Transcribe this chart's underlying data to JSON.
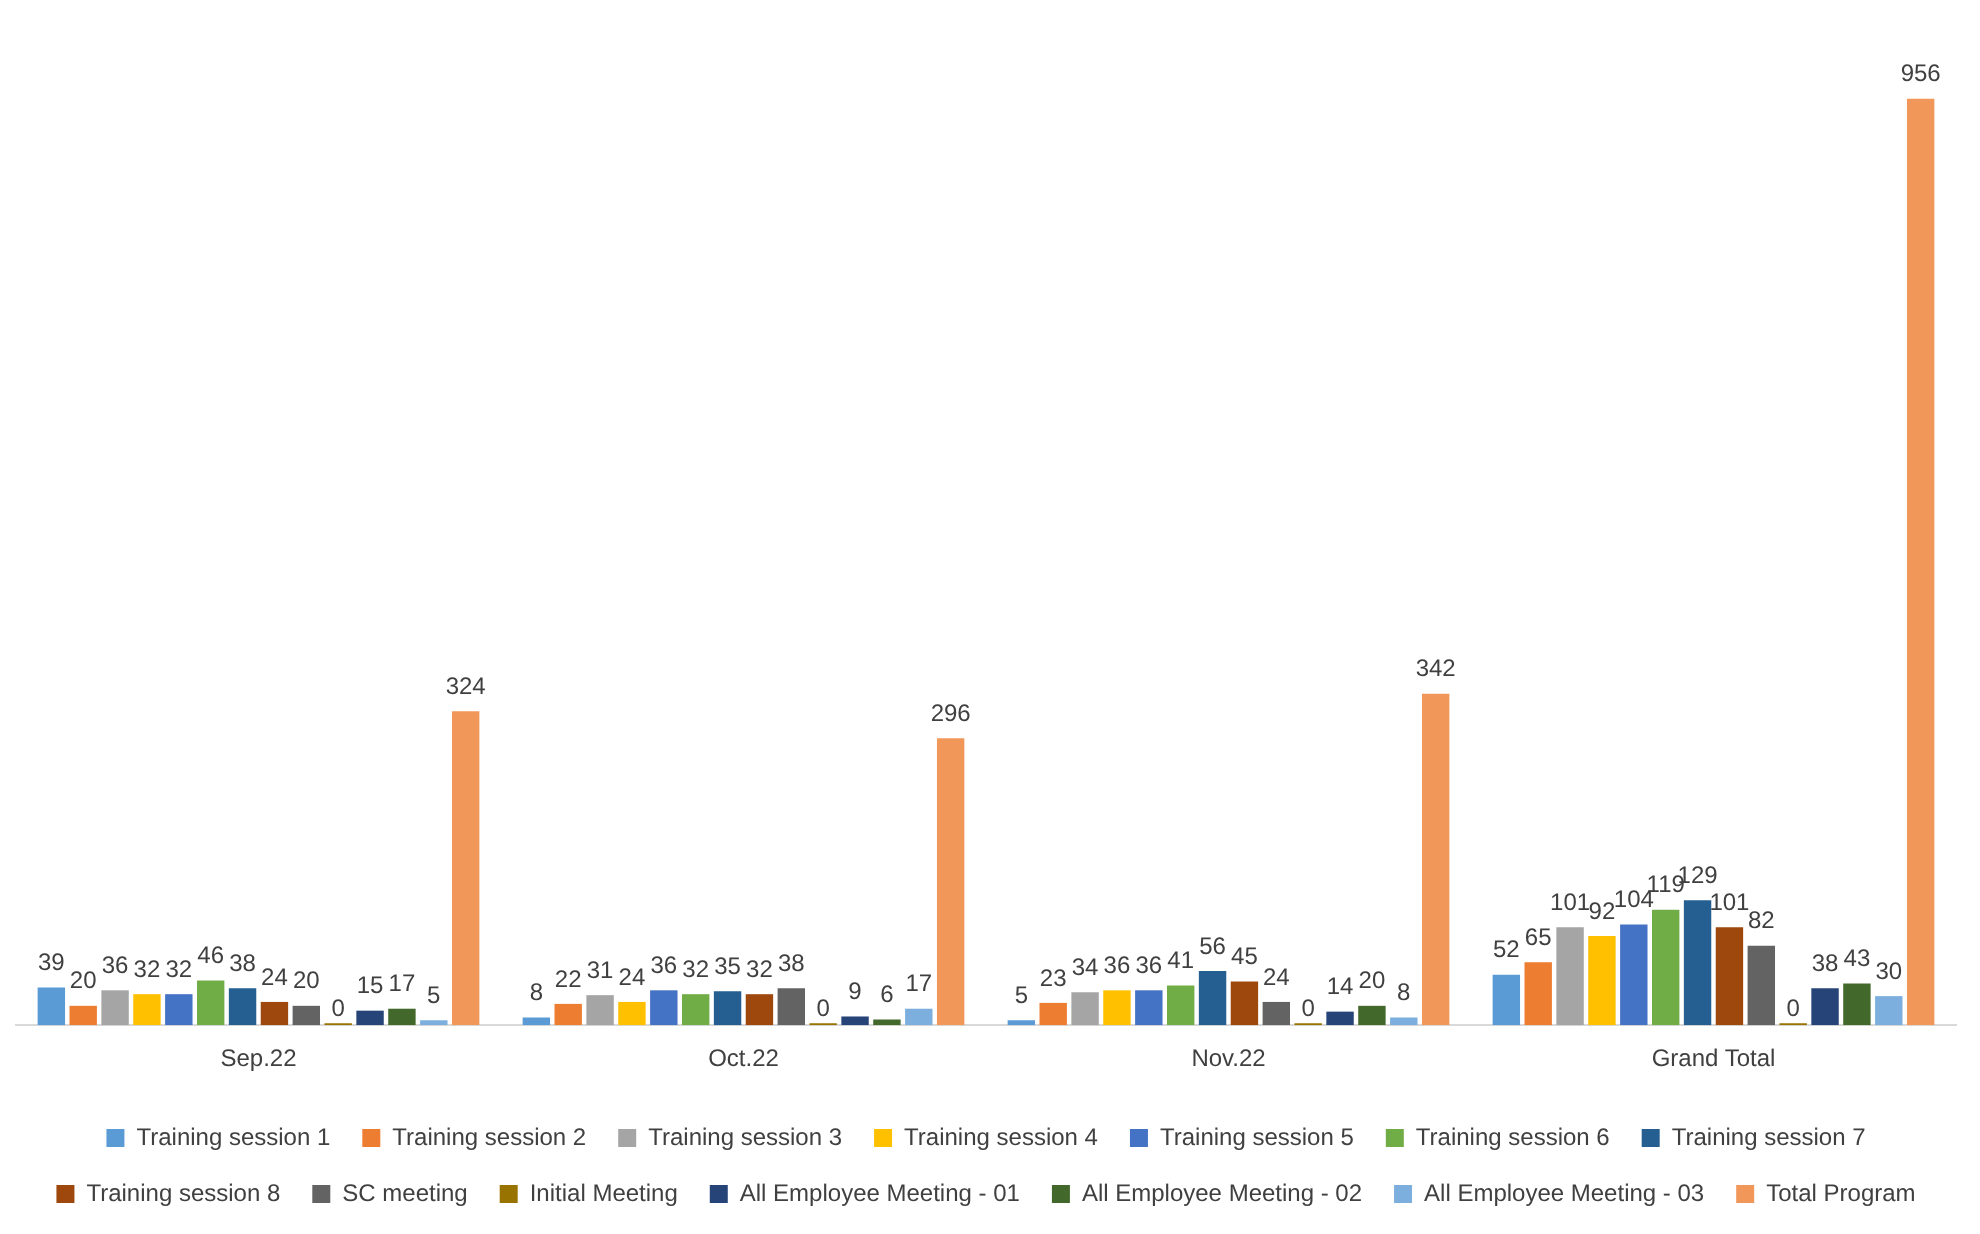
{
  "chart_data": {
    "type": "bar",
    "categories": [
      "Sep.22",
      "Oct.22",
      "Nov.22",
      "Grand Total"
    ],
    "data_labels": true,
    "legend": "bottom",
    "grid": false,
    "tick_labels": "x",
    "series": [
      {
        "name": "Training session 1",
        "color": "#5b9bd5",
        "values": [
          39,
          8,
          5,
          52
        ]
      },
      {
        "name": "Training session 2",
        "color": "#ed7d31",
        "values": [
          20,
          22,
          23,
          65
        ]
      },
      {
        "name": "Training session 3",
        "color": "#a5a5a5",
        "values": [
          36,
          31,
          34,
          101
        ]
      },
      {
        "name": "Training session 4",
        "color": "#ffc000",
        "values": [
          32,
          24,
          36,
          92
        ]
      },
      {
        "name": "Training session 5",
        "color": "#4472c4",
        "values": [
          32,
          36,
          36,
          104
        ]
      },
      {
        "name": "Training session 6",
        "color": "#70ad47",
        "values": [
          46,
          32,
          41,
          119
        ]
      },
      {
        "name": "Training session 7",
        "color": "#255e91",
        "values": [
          38,
          35,
          56,
          129
        ]
      },
      {
        "name": "Training session 8",
        "color": "#9e480e",
        "values": [
          24,
          32,
          45,
          101
        ]
      },
      {
        "name": "SC meeting",
        "color": "#636363",
        "values": [
          20,
          38,
          24,
          82
        ]
      },
      {
        "name": "Initial Meeting",
        "color": "#997300",
        "values": [
          0,
          0,
          0,
          0
        ]
      },
      {
        "name": "All Employee Meeting - 01",
        "color": "#264478",
        "values": [
          15,
          9,
          14,
          38
        ]
      },
      {
        "name": "All Employee Meeting - 02",
        "color": "#43682b",
        "values": [
          17,
          6,
          20,
          43
        ]
      },
      {
        "name": "All Employee Meeting - 03",
        "color": "#7cafdd",
        "values": [
          5,
          17,
          8,
          30
        ]
      },
      {
        "name": "Total Program",
        "color": "#f1975a",
        "values": [
          324,
          296,
          342,
          956
        ]
      }
    ]
  }
}
